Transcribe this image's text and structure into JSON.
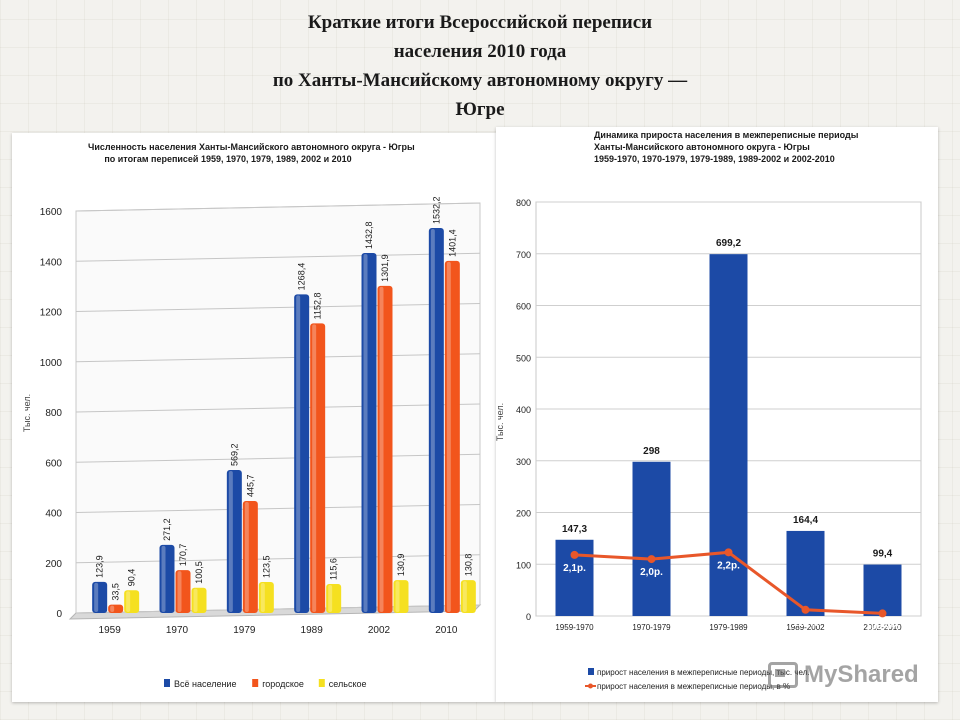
{
  "slide": {
    "title_lines": [
      "Краткие итоги Всероссийской переписи",
      "населения 2010 года",
      "по Ханты-Мансийскому автономному округу —",
      "Югре"
    ]
  },
  "chart_data": [
    {
      "type": "bar",
      "title_lines": [
        "Численность населения Ханты-Мансийского автономного округа - Югры",
        "по итогам переписей 1959, 1970, 1979, 1989, 2002 и 2010"
      ],
      "ylabel": "Тыс. чел.",
      "ylim": [
        0,
        1600
      ],
      "yticks": [
        0,
        200,
        400,
        600,
        800,
        1000,
        1200,
        1400,
        1600
      ],
      "categories": [
        "1959",
        "1970",
        "1979",
        "1989",
        "2002",
        "2010"
      ],
      "series": [
        {
          "name": "Всё население",
          "color": "#1c4aa6",
          "values": [
            123.9,
            271.2,
            569.2,
            1268.4,
            1432.8,
            1532.2
          ],
          "labels": [
            "123,9",
            "271,2",
            "569,2",
            "1268,4",
            "1432,8",
            "1532,2"
          ]
        },
        {
          "name": "городское",
          "color": "#f2551c",
          "values": [
            33.5,
            170.7,
            445.7,
            1152.8,
            1301.9,
            1401.4
          ],
          "labels": [
            "33,5",
            "170,7",
            "445,7",
            "1152,8",
            "1301,9",
            "1401,4"
          ]
        },
        {
          "name": "сельское",
          "color": "#f5e020",
          "values": [
            90.4,
            100.5,
            123.5,
            115.6,
            130.9,
            130.8
          ],
          "labels": [
            "90,4",
            "100,5",
            "123,5",
            "115,6",
            "130,9",
            "130,8"
          ]
        }
      ],
      "legend": "bottom",
      "grid": true
    },
    {
      "type": "bar",
      "title_lines": [
        "Динамика прироста населения в межпереписные периоды",
        "Ханты-Мансийского автономного округа - Югры",
        "1959-1970, 1970-1979, 1979-1989, 1989-2002 и 2002-2010"
      ],
      "ylabel": "Тыс. чел.",
      "ylim": [
        0,
        800
      ],
      "yticks": [
        0,
        100,
        200,
        300,
        400,
        500,
        600,
        700,
        800
      ],
      "categories": [
        "1959-1970",
        "1970-1979",
        "1979-1989",
        "1989-2002",
        "2002-2010"
      ],
      "bar_series": {
        "name": "прирост населения в межпереписные периоды, тыс. чел.",
        "color": "#1c4aa6",
        "values": [
          147.3,
          298,
          699.2,
          164.4,
          99.4
        ],
        "labels": [
          "147,3",
          "298",
          "699,2",
          "164,4",
          "99,4"
        ]
      },
      "line_series": {
        "name": "прирост населения в межпереписные периоды, в %",
        "color": "#e8572a",
        "labels": [
          "2,1р.",
          "2,0р.",
          "2,2р.",
          "113%",
          "106,9%"
        ],
        "plot_values": [
          118,
          110,
          123,
          12,
          5
        ]
      },
      "legend": "bottom",
      "grid": true
    }
  ],
  "watermark": {
    "text": "MyShared"
  }
}
